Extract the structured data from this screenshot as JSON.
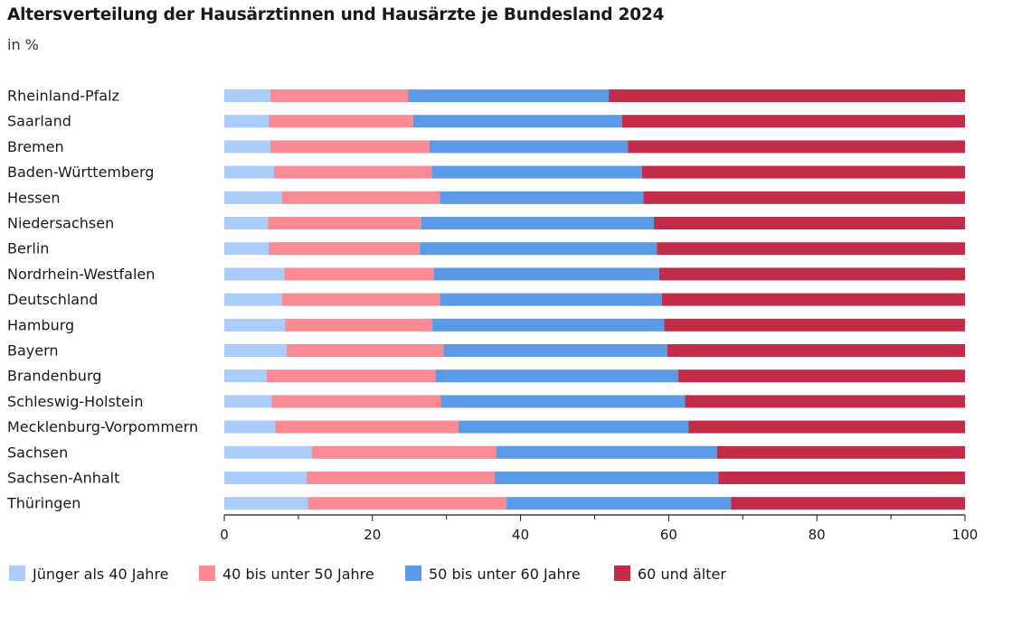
{
  "chart_data": {
    "type": "bar",
    "orientation": "horizontal",
    "stacked": true,
    "title": "Altersverteilung der Hausärztinnen und Hausärzte je Bundesland 2024",
    "subtitle": "in %",
    "xlabel": "",
    "ylabel": "",
    "xlim": [
      0,
      100
    ],
    "xticks": [
      0,
      20,
      40,
      60,
      80,
      100
    ],
    "legend_position": "bottom",
    "categories": [
      "Rheinland-Pfalz",
      "Saarland",
      "Bremen",
      "Baden-Württemberg",
      "Hessen",
      "Niedersachsen",
      "Berlin",
      "Nordrhein-Westfalen",
      "Deutschland",
      "Hamburg",
      "Bayern",
      "Brandenburg",
      "Schleswig-Holstein",
      "Mecklenburg-Vorpommern",
      "Sachsen",
      "Sachsen-Anhalt",
      "Thüringen"
    ],
    "series": [
      {
        "name": "Jünger als 40 Jahre",
        "color": "#aacdfa",
        "values": [
          6.2,
          6.0,
          6.2,
          6.7,
          7.8,
          5.9,
          6.0,
          8.1,
          7.8,
          8.2,
          8.4,
          5.7,
          6.4,
          6.9,
          11.8,
          11.1,
          11.3
        ]
      },
      {
        "name": "40 bis unter 50 Jahre",
        "color": "#fa8a93",
        "values": [
          18.6,
          19.5,
          21.5,
          21.3,
          21.3,
          20.7,
          20.4,
          20.2,
          21.3,
          19.9,
          21.2,
          22.8,
          22.8,
          24.7,
          24.9,
          25.4,
          26.8
        ]
      },
      {
        "name": "50 bis unter 60 Jahre",
        "color": "#5a9ae6",
        "values": [
          27.1,
          28.2,
          26.8,
          28.4,
          27.5,
          31.4,
          32.0,
          30.4,
          30.0,
          31.3,
          30.2,
          32.8,
          33.0,
          31.1,
          29.8,
          30.2,
          30.3
        ]
      },
      {
        "name": "60 und älter",
        "color": "#c12c48",
        "values": [
          48.1,
          46.3,
          45.5,
          43.6,
          43.4,
          42.0,
          41.6,
          41.3,
          40.9,
          40.6,
          40.2,
          38.7,
          37.8,
          37.3,
          33.5,
          33.3,
          31.6
        ]
      }
    ]
  }
}
